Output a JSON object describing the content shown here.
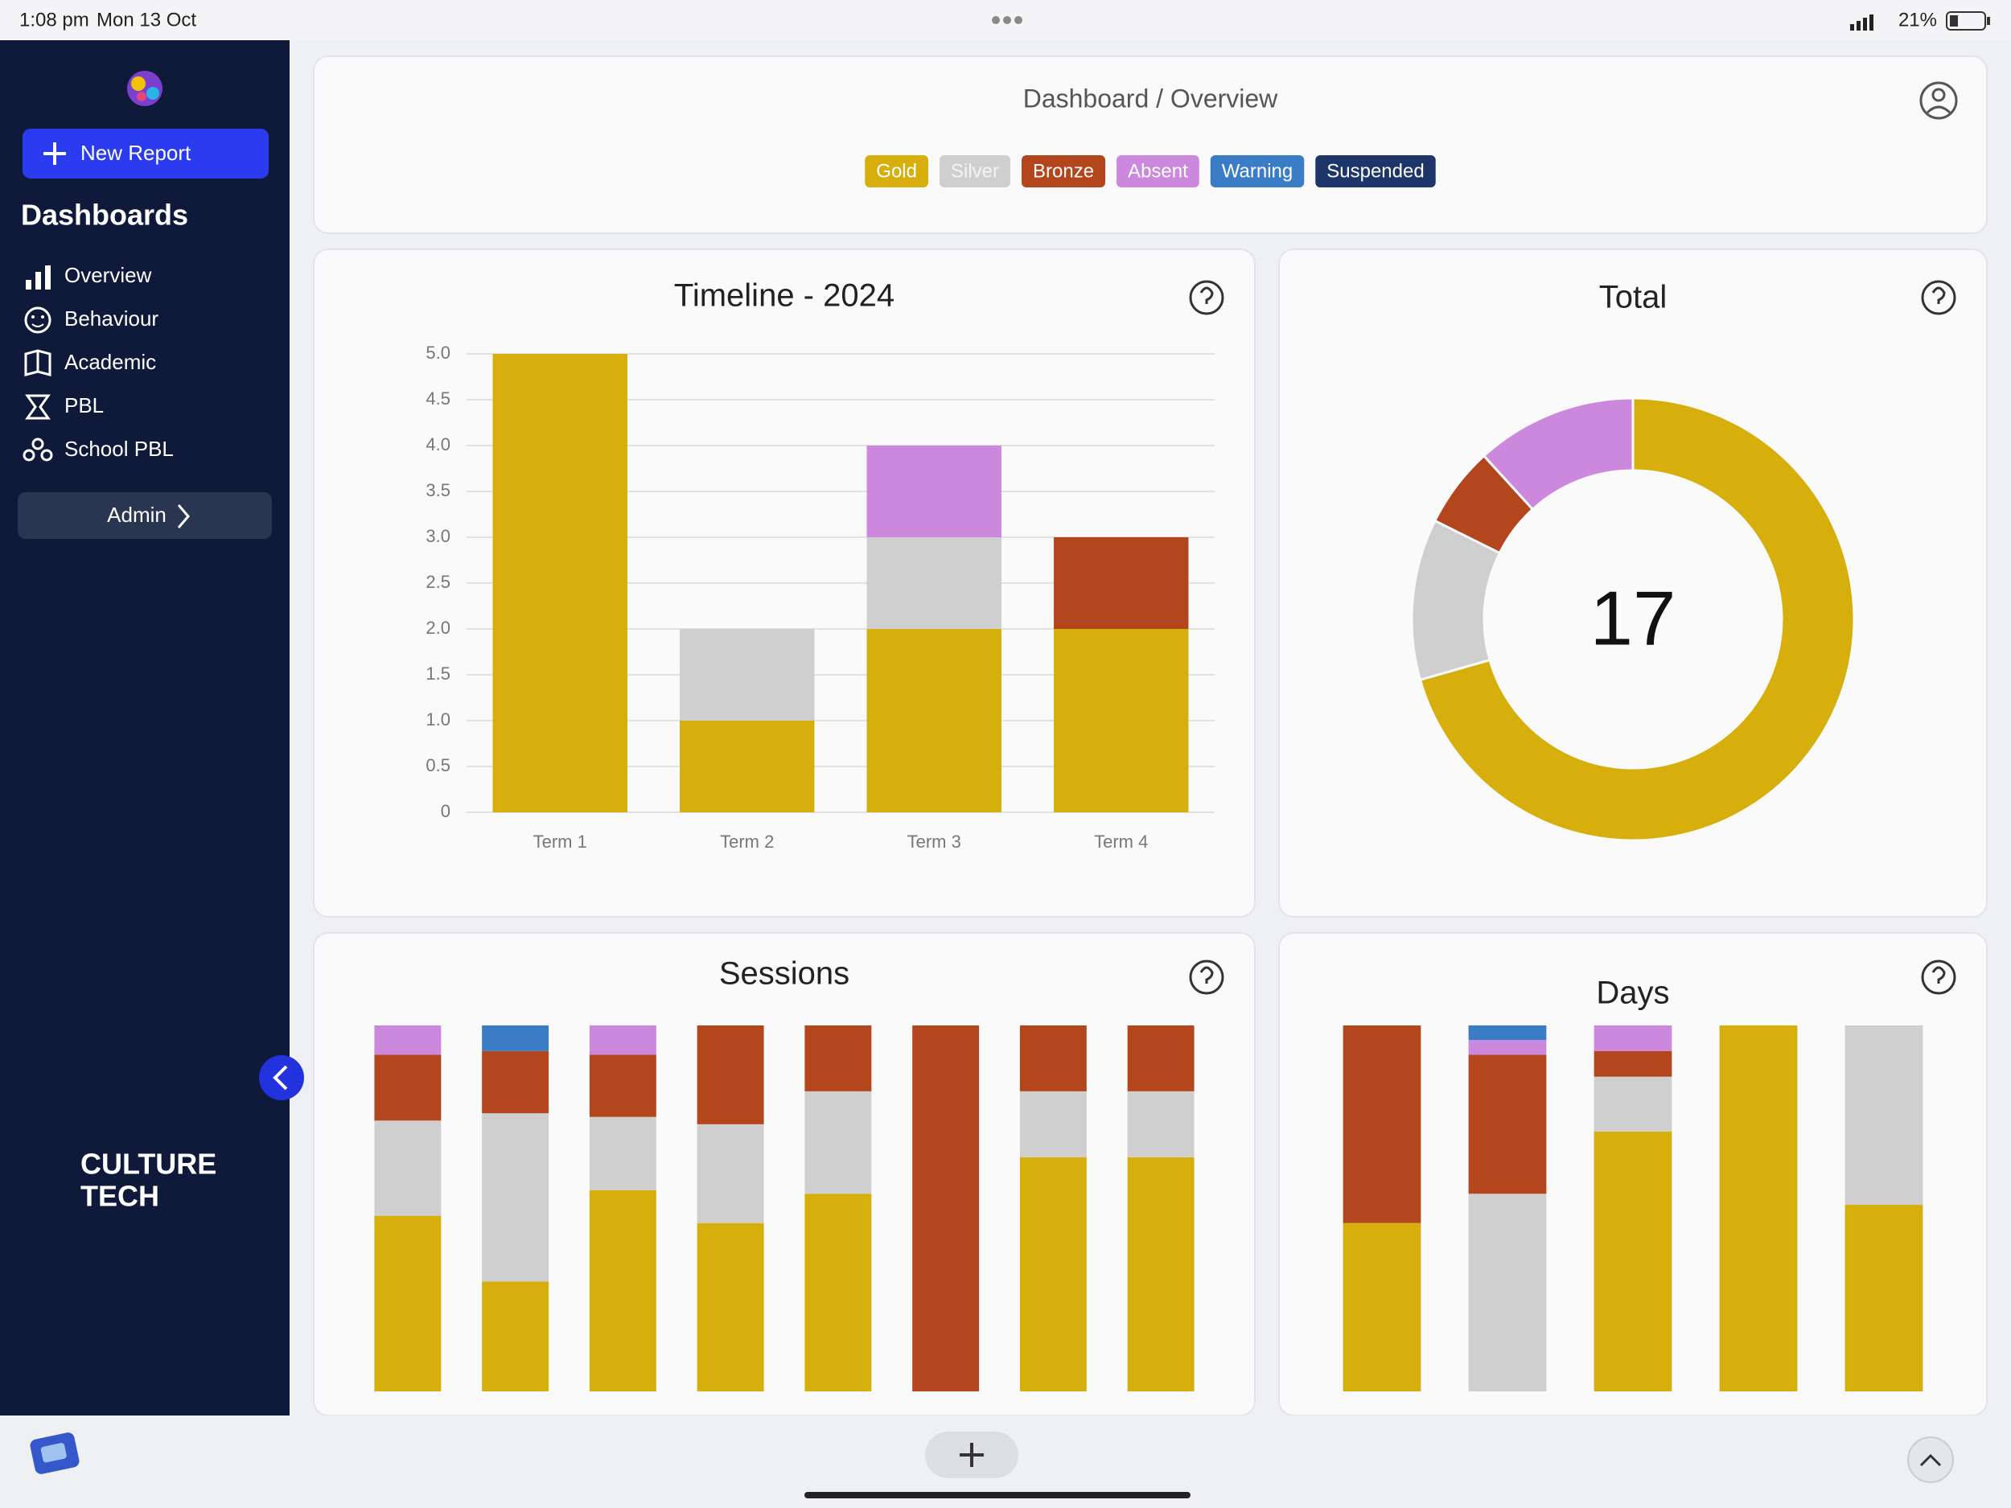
{
  "status_bar": {
    "time": "1:08 pm",
    "date": "Mon 13 Oct",
    "battery": "21%"
  },
  "sidebar": {
    "new_report": "New Report",
    "section": "Dashboards",
    "items": [
      "Overview",
      "Behaviour",
      "Academic",
      "PBL",
      "School PBL"
    ],
    "admin": "Admin",
    "brand": [
      "CULTURE",
      "TECH"
    ]
  },
  "header": {
    "breadcrumb": "Dashboard / Overview",
    "legend": [
      {
        "label": "Gold",
        "color": "#d6af0c"
      },
      {
        "label": "Silver",
        "color": "#cfcfcf"
      },
      {
        "label": "Bronze",
        "color": "#b4461d"
      },
      {
        "label": "Absent",
        "color": "#cc88dc"
      },
      {
        "label": "Warning",
        "color": "#3a7cc6"
      },
      {
        "label": "Suspended",
        "color": "#1d3569"
      }
    ]
  },
  "chart_data": [
    {
      "type": "bar",
      "stacking": "absolute",
      "title": "Timeline - 2024",
      "categories": [
        "Term 1",
        "Term 2",
        "Term 3",
        "Term 4"
      ],
      "series": [
        {
          "color": "#d6af0c",
          "values": [
            5,
            1,
            2,
            2
          ]
        },
        {
          "color": "#cfcfcf",
          "values": [
            0,
            1,
            1,
            0
          ]
        },
        {
          "color": "#b4461d",
          "values": [
            0,
            0,
            0,
            1
          ]
        },
        {
          "color": "#cc88dc",
          "values": [
            0,
            0,
            1,
            0
          ]
        }
      ],
      "ylim": [
        0,
        5
      ],
      "yticks": [
        0,
        0.5,
        {
          "value": 1,
          "label": "1.0"
        },
        1.5,
        {
          "value": 2,
          "label": "2.0"
        },
        2.5,
        {
          "value": 3,
          "label": "3.0"
        },
        3.5,
        {
          "value": 4,
          "label": "4.0"
        },
        4.5,
        {
          "value": 5,
          "label": "5.0"
        }
      ],
      "grid": true
    },
    {
      "type": "donut",
      "title": "Total",
      "total": 17,
      "values": [
        12,
        2,
        1,
        2
      ],
      "colors": [
        "#d6af0c",
        "#cfcfcf",
        "#b4461d",
        "#cc88dc"
      ]
    },
    {
      "type": "bar",
      "stacking": "percent",
      "title": "Sessions",
      "series": [
        {
          "color": "#d6af0c",
          "values": [
            48,
            30,
            55,
            46,
            54,
            0,
            64,
            64
          ]
        },
        {
          "color": "#cfcfcf",
          "values": [
            26,
            46,
            20,
            27,
            28,
            0,
            18,
            18
          ]
        },
        {
          "color": "#b4461d",
          "values": [
            18,
            17,
            17,
            27,
            18,
            100,
            18,
            18
          ]
        },
        {
          "color": "#cc88dc",
          "values": [
            8,
            0,
            8,
            0,
            0,
            0,
            0,
            0
          ]
        },
        {
          "color": "#3a7cc6",
          "values": [
            0,
            7,
            0,
            0,
            0,
            0,
            0,
            0
          ]
        }
      ]
    },
    {
      "type": "bar",
      "stacking": "percent",
      "title": "Days",
      "series": [
        {
          "color": "#d6af0c",
          "values": [
            46,
            0,
            71,
            100,
            51
          ]
        },
        {
          "color": "#cfcfcf",
          "values": [
            0,
            54,
            15,
            0,
            49
          ]
        },
        {
          "color": "#b4461d",
          "values": [
            54,
            38,
            7,
            0,
            0
          ]
        },
        {
          "color": "#cc88dc",
          "values": [
            0,
            4,
            7,
            0,
            0
          ]
        },
        {
          "color": "#3a7cc6",
          "values": [
            0,
            4,
            0,
            0,
            0
          ]
        }
      ]
    }
  ]
}
